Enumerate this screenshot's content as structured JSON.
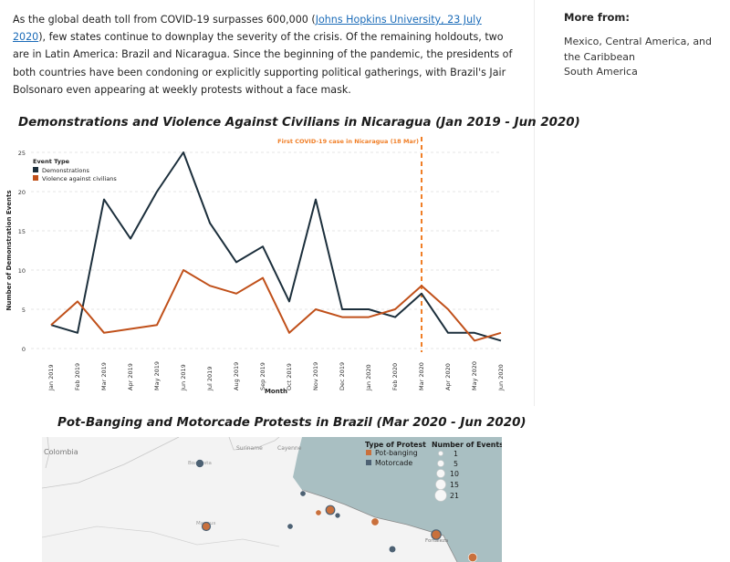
{
  "article": {
    "para_before_link": "As the global death toll from COVID-19 surpasses 600,000 (",
    "link_text": "Johns Hopkins University, 23 July 2020",
    "para_after_link": "), few states continue to downplay the severity of the crisis. Of the remaining holdouts, two are in Latin America: Brazil and Nicaragua. Since the beginning of the pandemic, the presidents of both countries have been condoning or explicitly supporting political gatherings, with Brazil's Jair Bolsonaro even appearing at weekly protests without a face mask."
  },
  "sidebar": {
    "heading": "More from:",
    "links": [
      "Mexico, Central America, and the Caribbean",
      "South America"
    ]
  },
  "chart_data": [
    {
      "type": "line",
      "title": "Demonstrations and Violence Against Civilians in Nicaragua (Jan 2019 - Jun 2020)",
      "xlabel": "Month",
      "ylabel": "Number of Demonstration Events",
      "ylim": [
        0,
        25
      ],
      "yticks": [
        "0",
        "5",
        "10",
        "15",
        "20",
        "25"
      ],
      "legend_title": "Event Type",
      "legend_position": "top-left",
      "categories": [
        "Jan 2019",
        "Feb 2019",
        "Mar 2019",
        "Apr 2019",
        "May 2019",
        "Jun 2019",
        "Jul 2019",
        "Aug 2019",
        "Sep 2019",
        "Oct 2019",
        "Nov 2019",
        "Dec 2019",
        "Jan 2020",
        "Feb 2020",
        "Mar 2020",
        "Apr 2020",
        "May 2020",
        "Jun 2020"
      ],
      "series": [
        {
          "name": "Demonstrations",
          "color": "#1c2f3c",
          "values": [
            3,
            2,
            19,
            14,
            20,
            25,
            16,
            11,
            13,
            6,
            19,
            5,
            5,
            4,
            7,
            2,
            2,
            1
          ]
        },
        {
          "name": "Violence against civilians",
          "color": "#c0501a",
          "values": [
            3,
            6,
            2,
            2.5,
            3,
            10,
            8,
            7,
            9,
            2,
            5,
            4,
            4,
            5,
            8,
            5,
            1,
            2
          ]
        }
      ],
      "annotation": {
        "text": "First COVID-19 case in Nicaragua (18 Mar)",
        "x": "Mar 2020",
        "color": "#f07e26"
      }
    },
    {
      "type": "map",
      "title": "Pot-Banging and Motorcade Protests in Brazil (Mar 2020 - Jun 2020)",
      "legend_type_title": "Type of Protest",
      "legend_types": [
        {
          "name": "Pot-banging",
          "color": "#c9703c"
        },
        {
          "name": "Motorcade",
          "color": "#4d6173"
        }
      ],
      "legend_size_title": "Number of Events",
      "legend_sizes": [
        "1",
        "5",
        "10",
        "15",
        "21"
      ],
      "labels": [
        "Colombia",
        "Suriname",
        "Cayenne",
        "Boa Vista",
        "Manaus",
        "Fortaleza"
      ],
      "colors": {
        "land": "#f3f3f3",
        "ocean": "#a9bfc2",
        "pot": "#c9703c",
        "motor": "#4d6173"
      }
    }
  ]
}
